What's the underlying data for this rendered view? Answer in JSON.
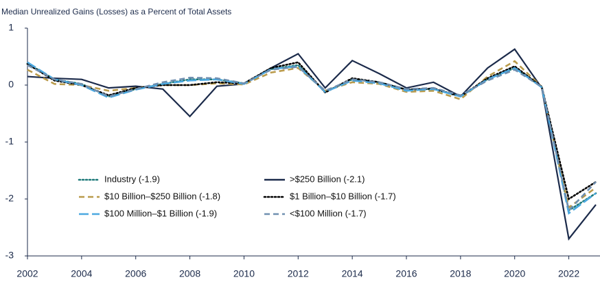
{
  "chart_data": {
    "type": "line",
    "title": "Median Unrealized Gains (Losses) as a Percent of Total Assets",
    "x": [
      2002,
      2003,
      2004,
      2005,
      2006,
      2007,
      2008,
      2009,
      2010,
      2011,
      2012,
      2013,
      2014,
      2015,
      2016,
      2017,
      2018,
      2019,
      2020,
      2021,
      2022,
      2023
    ],
    "xlim": [
      2002,
      2023
    ],
    "xticks": [
      2002,
      2004,
      2006,
      2008,
      2010,
      2012,
      2014,
      2016,
      2018,
      2020,
      2022
    ],
    "ylim": [
      -3,
      1
    ],
    "yticks": [
      1,
      0,
      -1,
      -2,
      -3
    ],
    "series": [
      {
        "name": "Industry (-1.9)",
        "color": "#1f7a7a",
        "line_style": "dotted",
        "values": [
          0.38,
          0.1,
          0.02,
          -0.2,
          -0.07,
          0.02,
          0.1,
          0.1,
          0.03,
          0.28,
          0.35,
          -0.12,
          0.1,
          0.05,
          -0.08,
          -0.07,
          -0.2,
          0.1,
          0.3,
          -0.03,
          -2.2,
          -1.9
        ]
      },
      {
        "name": ">$250 Billion (-2.1)",
        "color": "#1b2a4a",
        "line_style": "solid",
        "values": [
          0.15,
          0.12,
          0.1,
          -0.05,
          -0.02,
          -0.07,
          -0.55,
          -0.02,
          0.02,
          0.3,
          0.55,
          -0.05,
          0.43,
          0.2,
          -0.05,
          0.05,
          -0.2,
          0.3,
          0.63,
          -0.05,
          -2.7,
          -2.1
        ]
      },
      {
        "name": "$10 Billion–$250 Billion (-1.8)",
        "color": "#b99a4a",
        "line_style": "dashed",
        "values": [
          0.27,
          0.02,
          0.0,
          -0.1,
          -0.05,
          0.0,
          0.0,
          0.03,
          0.01,
          0.22,
          0.3,
          -0.1,
          0.05,
          0.02,
          -0.12,
          -0.1,
          -0.25,
          0.15,
          0.42,
          -0.03,
          -2.15,
          -1.8
        ]
      },
      {
        "name": "$1 Billion–$10 Billion (-1.7)",
        "color": "#000000",
        "line_style": "dotted",
        "values": [
          0.37,
          0.08,
          0.0,
          -0.18,
          -0.05,
          0.0,
          0.0,
          0.05,
          0.03,
          0.3,
          0.4,
          -0.13,
          0.12,
          0.05,
          -0.08,
          -0.06,
          -0.2,
          0.12,
          0.33,
          -0.03,
          -2.0,
          -1.7
        ]
      },
      {
        "name": "$100 Million–$1 Billion (-1.9)",
        "color": "#4aa8e0",
        "line_style": "longdash",
        "values": [
          0.4,
          0.1,
          0.0,
          -0.22,
          -0.08,
          0.02,
          0.08,
          0.1,
          0.02,
          0.28,
          0.33,
          -0.12,
          0.08,
          0.03,
          -0.1,
          -0.07,
          -0.2,
          0.1,
          0.3,
          -0.04,
          -2.25,
          -1.9
        ]
      },
      {
        "name": "<$100 Million (-1.7)",
        "color": "#6f8fb0",
        "line_style": "dashed",
        "values": [
          0.35,
          0.1,
          0.02,
          -0.2,
          -0.07,
          0.05,
          0.13,
          0.12,
          0.03,
          0.27,
          0.32,
          -0.1,
          0.1,
          0.05,
          -0.07,
          -0.05,
          -0.18,
          0.08,
          0.27,
          -0.03,
          -2.2,
          -1.7
        ]
      }
    ]
  }
}
